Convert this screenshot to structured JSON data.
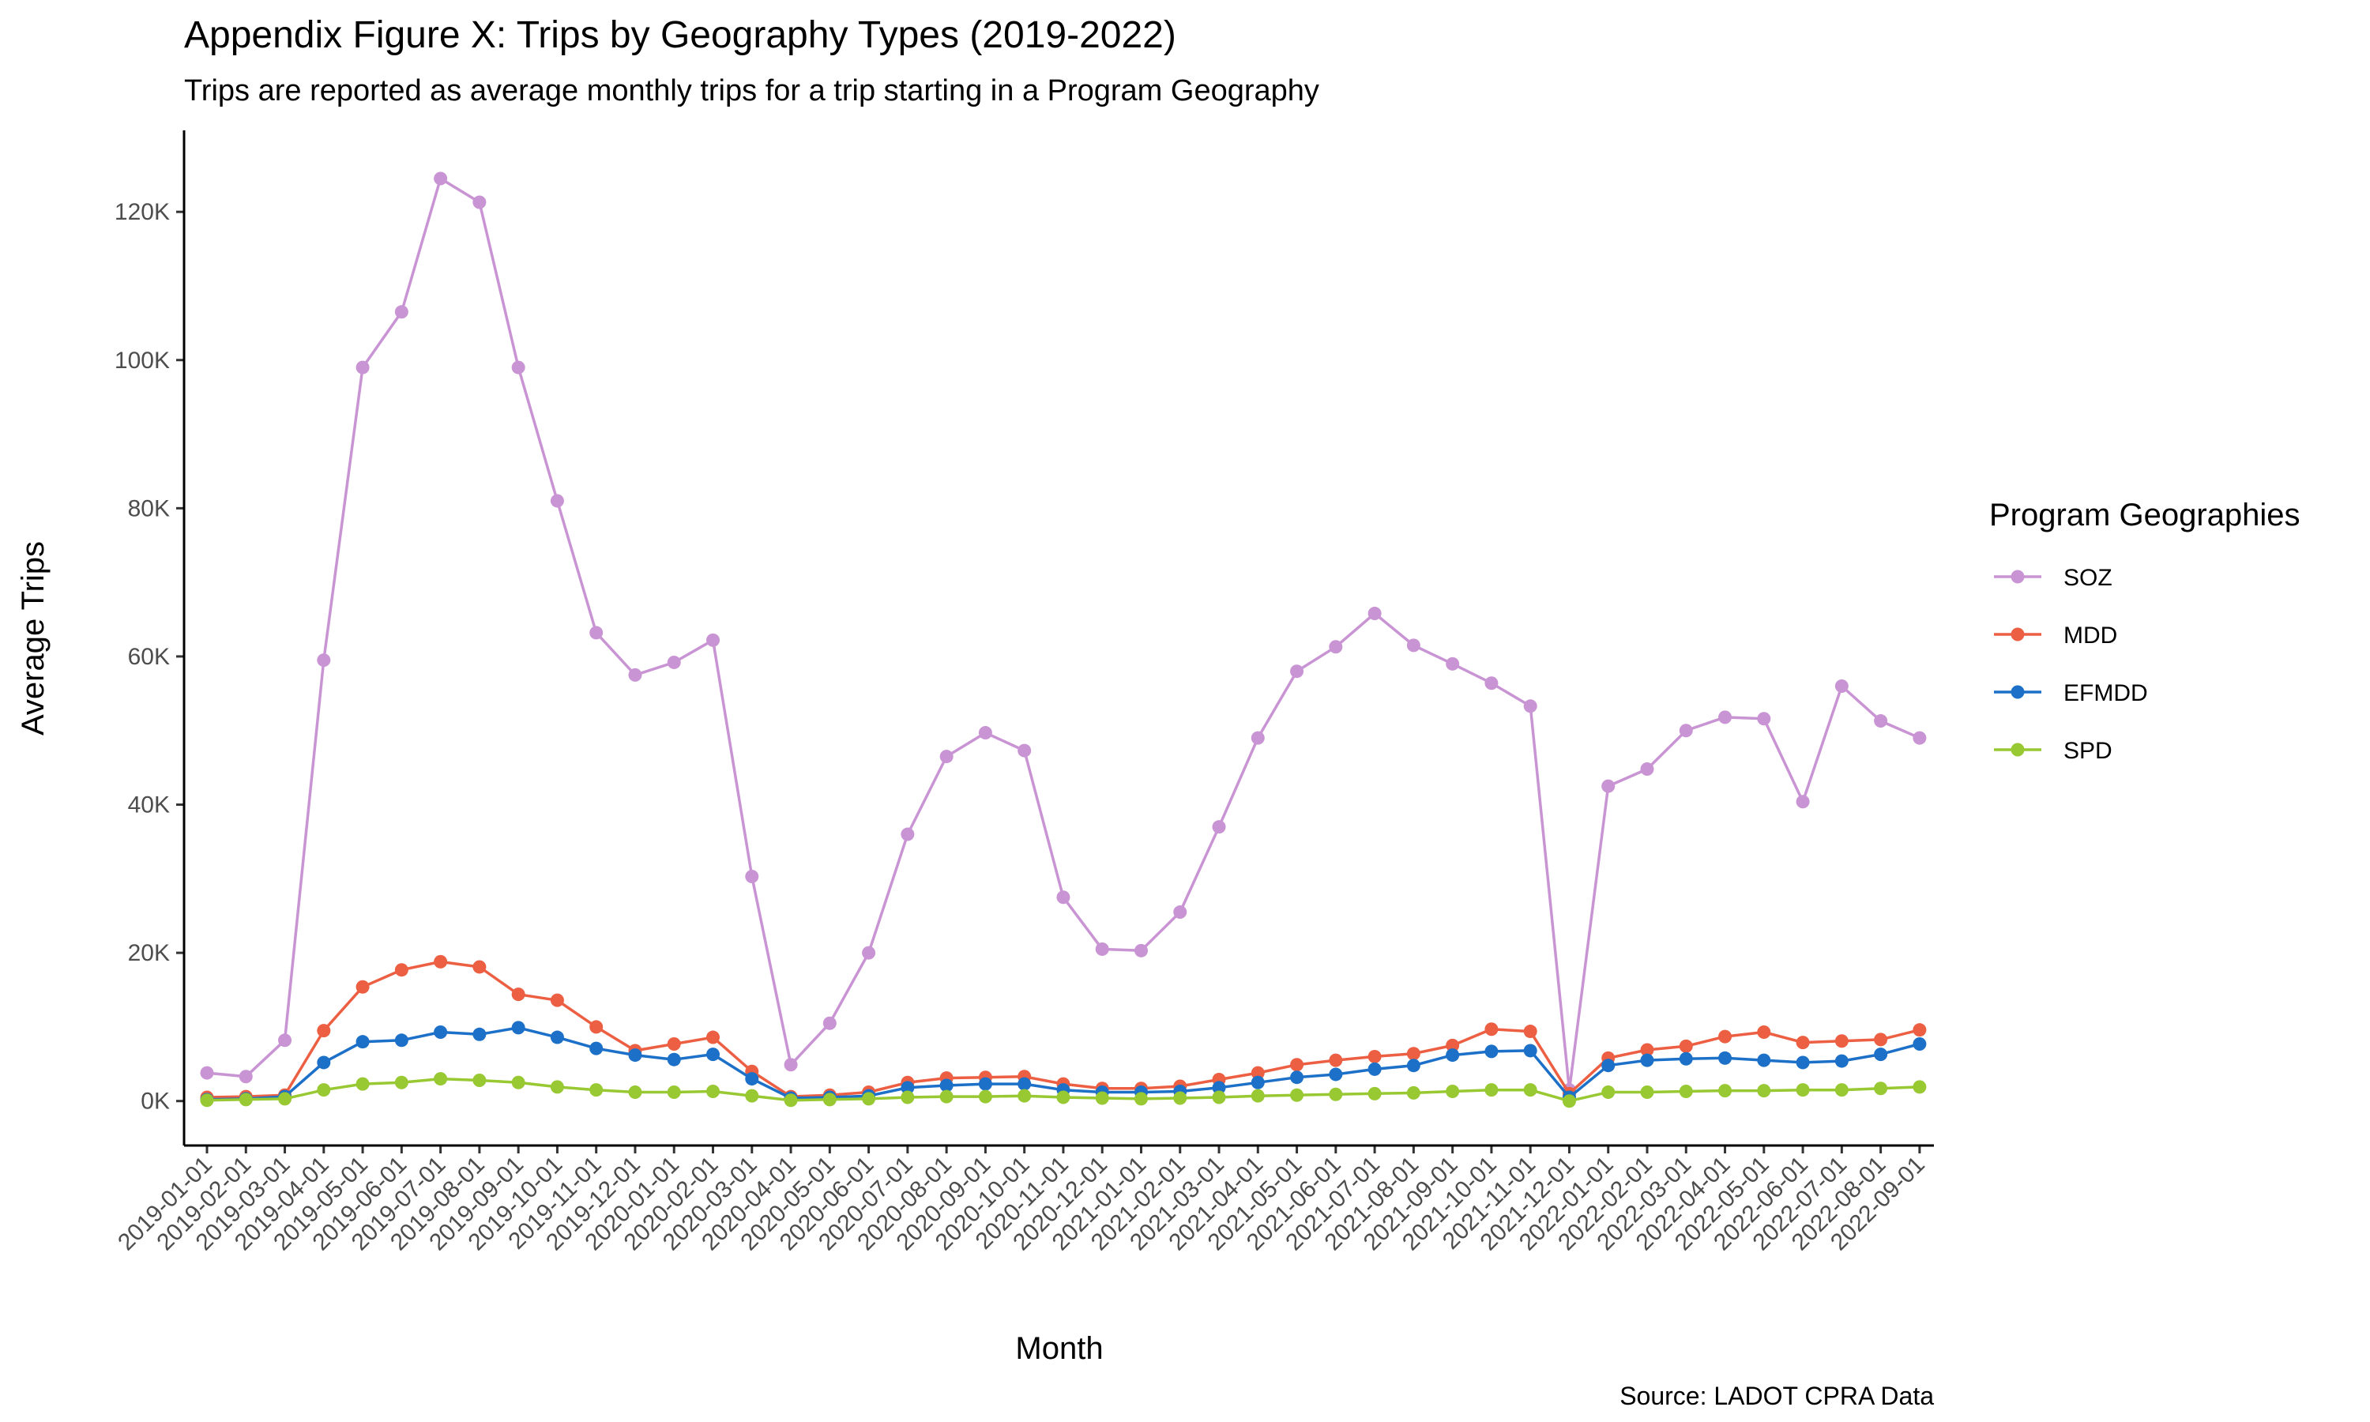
{
  "chart_data": {
    "type": "line",
    "title": "Appendix Figure X: Trips by Geography Types (2019-2022)",
    "subtitle": "Trips are reported as average monthly trips for a trip starting in a Program Geography",
    "xlabel": "Month",
    "ylabel": "Average Trips",
    "caption": "Source: LADOT CPRA Data",
    "legend_title": "Program Geographies",
    "legend_position": "right",
    "grid": false,
    "ylim": [
      -6000,
      131000
    ],
    "yticks": [
      0,
      20000,
      40000,
      60000,
      80000,
      100000,
      120000
    ],
    "ytick_labels": [
      "0K",
      "20K",
      "40K",
      "60K",
      "80K",
      "100K",
      "120K"
    ],
    "x": [
      "2019-01-01",
      "2019-02-01",
      "2019-03-01",
      "2019-04-01",
      "2019-05-01",
      "2019-06-01",
      "2019-07-01",
      "2019-08-01",
      "2019-09-01",
      "2019-10-01",
      "2019-11-01",
      "2019-12-01",
      "2020-01-01",
      "2020-02-01",
      "2020-03-01",
      "2020-04-01",
      "2020-05-01",
      "2020-06-01",
      "2020-07-01",
      "2020-08-01",
      "2020-09-01",
      "2020-10-01",
      "2020-11-01",
      "2020-12-01",
      "2021-01-01",
      "2021-02-01",
      "2021-03-01",
      "2021-04-01",
      "2021-05-01",
      "2021-06-01",
      "2021-07-01",
      "2021-08-01",
      "2021-09-01",
      "2021-10-01",
      "2021-11-01",
      "2021-12-01",
      "2022-01-01",
      "2022-02-01",
      "2022-03-01",
      "2022-04-01",
      "2022-05-01",
      "2022-06-01",
      "2022-07-01",
      "2022-08-01",
      "2022-09-01"
    ],
    "series": [
      {
        "name": "SOZ",
        "color": "#c994d3",
        "values": [
          3800,
          3300,
          8200,
          59500,
          99000,
          106500,
          124500,
          121300,
          99000,
          81000,
          63200,
          57500,
          59200,
          62200,
          30300,
          4900,
          10500,
          20000,
          36000,
          46500,
          49700,
          47300,
          27500,
          20500,
          20300,
          25500,
          37000,
          49000,
          58000,
          61300,
          65800,
          61500,
          59000,
          56400,
          53300,
          1500,
          42500,
          44800,
          50000,
          51800,
          51600,
          40400,
          56000,
          51300,
          49000
        ]
      },
      {
        "name": "MDD",
        "color": "#ec5f43",
        "values": [
          500,
          600,
          800,
          9500,
          15400,
          17700,
          18800,
          18100,
          14400,
          13600,
          10000,
          6800,
          7700,
          8600,
          4000,
          600,
          800,
          1200,
          2500,
          3100,
          3200,
          3300,
          2300,
          1700,
          1700,
          2000,
          2900,
          3800,
          4900,
          5500,
          6000,
          6400,
          7500,
          9700,
          9400,
          1000,
          5800,
          6900,
          7400,
          8700,
          9300,
          7900,
          8100,
          8300,
          9600
        ]
      },
      {
        "name": "EFMDD",
        "color": "#1c70c8",
        "values": [
          200,
          300,
          600,
          5200,
          8000,
          8200,
          9300,
          9000,
          9900,
          8600,
          7100,
          6200,
          5600,
          6300,
          3000,
          400,
          500,
          700,
          1800,
          2100,
          2300,
          2300,
          1500,
          1200,
          1200,
          1300,
          1800,
          2500,
          3200,
          3600,
          4300,
          4800,
          6200,
          6700,
          6800,
          500,
          4800,
          5500,
          5700,
          5800,
          5500,
          5200,
          5400,
          6300,
          7700
        ]
      },
      {
        "name": "SPD",
        "color": "#98c832",
        "values": [
          100,
          200,
          300,
          1500,
          2300,
          2500,
          3000,
          2800,
          2500,
          1900,
          1500,
          1200,
          1200,
          1300,
          700,
          100,
          200,
          300,
          500,
          600,
          600,
          700,
          500,
          400,
          300,
          400,
          500,
          700,
          800,
          900,
          1000,
          1100,
          1300,
          1500,
          1500,
          0,
          1200,
          1200,
          1300,
          1400,
          1400,
          1500,
          1500,
          1700,
          1900
        ]
      }
    ]
  }
}
